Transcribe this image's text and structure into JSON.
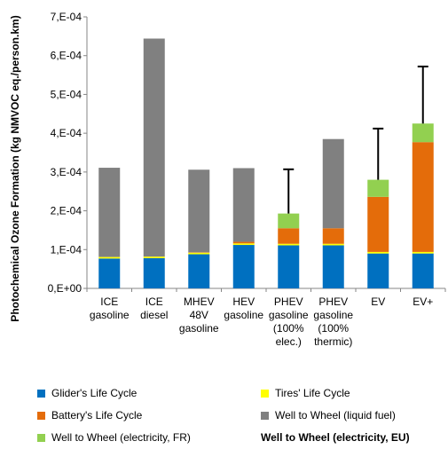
{
  "chart_data": {
    "type": "bar",
    "stacked": true,
    "title": "",
    "xlabel": "",
    "ylabel": "Photochemical Ozone Formation (kg NMVOC eq./person.km)",
    "ylim": [
      0,
      0.0007
    ],
    "yticks": [
      "0,E+00",
      "1,E-04",
      "2,E-04",
      "3,E-04",
      "4,E-04",
      "5,E-04",
      "6,E-04",
      "7,E-04"
    ],
    "ytick_values": [
      0,
      0.0001,
      0.0002,
      0.0003,
      0.0004,
      0.0005,
      0.0006,
      0.0007
    ],
    "grid": false,
    "legend_position": "bottom",
    "categories": [
      [
        "ICE",
        "gasoline"
      ],
      [
        "ICE",
        "diesel"
      ],
      [
        "MHEV",
        "48V",
        "gasoline"
      ],
      [
        "HEV",
        "gasoline"
      ],
      [
        "PHEV",
        "gasoline",
        "(100%",
        "elec.)"
      ],
      [
        "PHEV",
        "gasoline",
        "(100%",
        "thermic)"
      ],
      [
        "EV"
      ],
      [
        "EV+"
      ]
    ],
    "series": [
      {
        "name": "Glider's Life Cycle",
        "color": "#0070C0",
        "values": [
          7.7e-05,
          7.8e-05,
          8.8e-05,
          0.000112,
          0.000111,
          0.000111,
          9e-05,
          9e-05
        ]
      },
      {
        "name": "Tires' Life Cycle",
        "color": "#FFFF00",
        "values": [
          4e-06,
          4e-06,
          4e-06,
          4e-06,
          4e-06,
          4e-06,
          4e-06,
          4e-06
        ]
      },
      {
        "name": "Battery's Life Cycle",
        "color": "#E46C0A",
        "values": [
          0,
          0,
          1e-06,
          4e-06,
          4e-05,
          4e-05,
          0.000142,
          0.000283
        ]
      },
      {
        "name": "Well to Wheel (liquid fuel)",
        "color": "#808080",
        "values": [
          0.00023,
          0.000562,
          0.000213,
          0.00019,
          0,
          0.00023,
          0,
          0
        ]
      },
      {
        "name": "Well to Wheel (electricity, FR)",
        "color": "#92D050",
        "values": [
          0,
          0,
          0,
          0,
          3.8e-05,
          0,
          4.4e-05,
          4.8e-05
        ]
      }
    ],
    "error_series": {
      "name": "Well to Wheel (electricity, EU)",
      "color": "#000000",
      "values": [
        null,
        null,
        null,
        null,
        0.000307,
        null,
        0.000412,
        0.000572
      ]
    }
  }
}
